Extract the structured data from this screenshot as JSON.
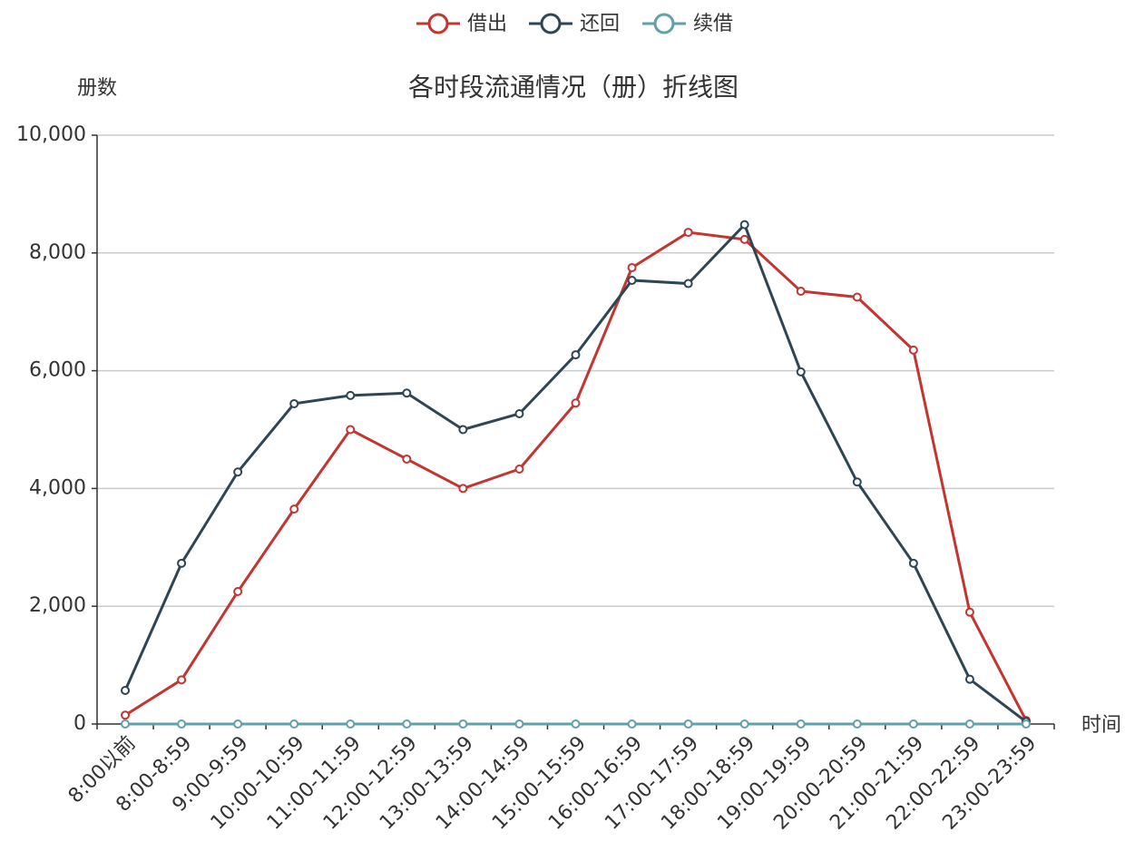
{
  "chart_data": {
    "type": "line",
    "title": "各时段流通情况（册）折线图",
    "y_axis_label": "册数",
    "x_axis_label": "时间",
    "categories": [
      "8:00以前",
      "8:00-8:59",
      "9:00-9:59",
      "10:00-10:59",
      "11:00-11:59",
      "12:00-12:59",
      "13:00-13:59",
      "14:00-14:59",
      "15:00-15:59",
      "16:00-16:59",
      "17:00-17:59",
      "18:00-18:59",
      "19:00-19:59",
      "20:00-20:59",
      "21:00-21:59",
      "22:00-22:59",
      "23:00-23:59"
    ],
    "series": [
      {
        "name": "借出",
        "color": "#c23531",
        "values": [
          150,
          750,
          2250,
          3650,
          5000,
          4500,
          4000,
          4330,
          5450,
          7750,
          8350,
          8230,
          7350,
          7250,
          6350,
          1900,
          60
        ]
      },
      {
        "name": "还回",
        "color": "#2f4554",
        "values": [
          570,
          2730,
          4280,
          5440,
          5580,
          5620,
          5000,
          5270,
          6270,
          7535,
          7480,
          8480,
          5980,
          4110,
          2730,
          760,
          40
        ]
      },
      {
        "name": "续借",
        "color": "#61a0a8",
        "values": [
          0,
          0,
          0,
          0,
          0,
          0,
          0,
          0,
          0,
          0,
          0,
          0,
          0,
          0,
          0,
          0,
          0
        ]
      }
    ],
    "ylim": [
      0,
      10000
    ],
    "yticks": [
      0,
      {
        "value": 2000,
        "label": "2,000"
      },
      {
        "value": 4000,
        "label": "4,000"
      },
      {
        "value": 6000,
        "label": "6,000"
      },
      {
        "value": 8000,
        "label": "8,000"
      },
      {
        "value": 10000,
        "label": "10,000"
      }
    ],
    "grid": true,
    "legend": "top"
  }
}
